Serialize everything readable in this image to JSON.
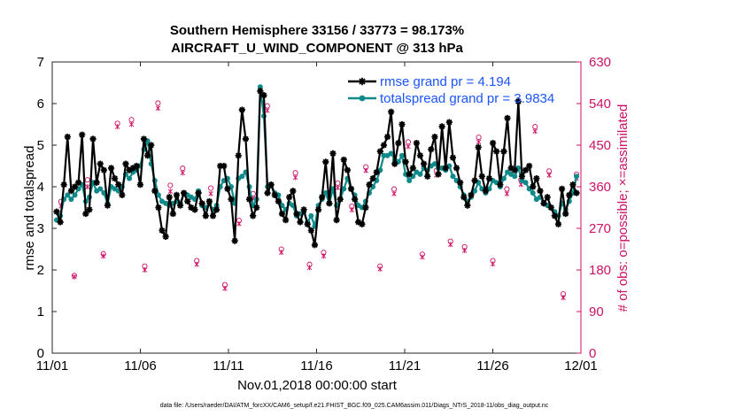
{
  "chart_data": {
    "type": "line",
    "title": "Southern Hemisphere 33156 / 33773 = 98.173%",
    "subtitle": "AIRCRAFT_U_WIND_COMPONENT @ 313 hPa",
    "xlabel": "Nov.01,2018 00:00:00 start",
    "ylabel": "rmse and totalspread",
    "y2label": "# of obs: o=possible; ×=assimilated",
    "footnote": "data file: /Users/raeder/DAI/ATM_forcXX/CAM6_setup/f.e21.FHIST_BGC.f09_025.CAM6assim.011/Diags_NTrS_2018-11/obs_diag_output.nc",
    "xlim": [
      0,
      30
    ],
    "ylim": [
      0,
      7
    ],
    "y2lim": [
      0,
      630
    ],
    "xticks": [
      0,
      5,
      10,
      15,
      20,
      25,
      30
    ],
    "xtick_labels": [
      "11/01",
      "11/06",
      "11/11",
      "11/16",
      "11/21",
      "11/26",
      "12/01"
    ],
    "yticks": [
      0,
      1,
      2,
      3,
      4,
      5,
      6,
      7
    ],
    "y2ticks": [
      0,
      90,
      180,
      270,
      360,
      450,
      540,
      630
    ],
    "colors": {
      "rmse": "#000000",
      "spread": "#0f8a8a",
      "obs": "#cc1166",
      "legend_text": "#1a55ff"
    },
    "series": [
      {
        "name": "rmse grand pr = 4.194",
        "values": [
          3.4,
          3.15,
          4.05,
          5.2,
          3.9,
          4.0,
          4.1,
          5.25,
          3.35,
          3.45,
          5.15,
          4.1,
          4.55,
          4.4,
          3.55,
          4.45,
          4.2,
          4.05,
          3.8,
          4.55,
          4.4,
          4.45,
          4.5,
          4.05,
          5.15,
          4.75,
          5.0,
          3.9,
          3.5,
          2.95,
          2.8,
          3.75,
          3.35,
          3.8,
          3.55,
          3.85,
          3.65,
          3.5,
          3.45,
          3.85,
          3.6,
          3.3,
          3.65,
          3.3,
          3.45,
          4.5,
          4.5,
          3.95,
          3.7,
          2.7,
          4.75,
          5.85,
          5.15,
          3.7,
          3.3,
          3.5,
          6.3,
          6.2,
          3.85,
          4.05,
          3.8,
          3.65,
          3.35,
          3.2,
          3.75,
          3.9,
          3.35,
          3.15,
          3.45,
          3.1,
          2.95,
          2.6,
          3.45,
          3.75,
          4.6,
          3.6,
          4.8,
          3.2,
          3.7,
          4.65,
          4.4,
          3.95,
          3.7,
          3.15,
          3.1,
          3.5,
          4.05,
          4.2,
          4.35,
          4.85,
          5.0,
          5.2,
          5.8,
          4.55,
          5.05,
          5.5,
          4.6,
          4.3,
          4.45,
          5.05,
          4.75,
          4.55,
          4.25,
          4.9,
          5.2,
          4.3,
          5.45,
          4.45,
          5.55,
          4.7,
          4.45,
          4.1,
          3.75,
          3.55,
          3.8,
          4.15,
          4.95,
          4.25,
          3.9,
          4.2,
          5.05,
          4.85,
          4.05,
          4.85,
          5.65,
          4.45,
          4.4,
          6.05,
          4.25,
          4.4,
          4.5,
          4.0,
          4.2,
          3.9,
          3.6,
          3.75,
          3.5,
          3.3,
          3.1,
          3.95,
          3.35,
          3.8,
          4.05,
          3.85
        ],
        "marker": "asterisk"
      },
      {
        "name": "totalspread grand pr = 3.9834",
        "values": [
          3.2,
          3.3,
          3.7,
          3.8,
          3.7,
          3.8,
          3.95,
          4.05,
          3.65,
          3.75,
          4.1,
          3.9,
          3.95,
          3.85,
          3.6,
          4.0,
          3.95,
          3.9,
          4.0,
          4.3,
          4.2,
          4.35,
          4.4,
          4.5,
          4.9,
          5.1,
          4.55,
          4.15,
          3.8,
          3.65,
          3.6,
          3.55,
          3.6,
          3.65,
          3.6,
          3.85,
          3.8,
          3.75,
          3.7,
          3.9,
          3.55,
          3.5,
          3.6,
          3.45,
          3.55,
          4.0,
          4.15,
          4.2,
          4.0,
          3.6,
          4.2,
          4.25,
          4.35,
          4.0,
          3.55,
          3.7,
          6.4,
          5.7,
          4.0,
          4.05,
          3.85,
          3.8,
          3.55,
          3.45,
          3.6,
          3.55,
          3.3,
          3.35,
          3.4,
          3.15,
          3.3,
          3.05,
          3.55,
          3.7,
          3.85,
          3.6,
          3.95,
          3.55,
          3.7,
          3.95,
          4.2,
          3.95,
          3.8,
          3.55,
          3.5,
          3.65,
          3.85,
          4.0,
          4.15,
          4.4,
          4.75,
          4.75,
          4.8,
          4.65,
          4.6,
          4.75,
          4.3,
          4.15,
          4.25,
          4.35,
          4.3,
          4.45,
          4.4,
          4.5,
          4.55,
          4.45,
          4.45,
          4.4,
          4.5,
          4.25,
          4.15,
          4.0,
          3.8,
          3.65,
          3.75,
          3.9,
          4.1,
          3.95,
          3.85,
          3.95,
          4.15,
          4.1,
          4.0,
          4.2,
          4.35,
          4.3,
          4.25,
          4.45,
          4.15,
          4.1,
          3.95,
          3.85,
          3.7,
          3.75,
          3.6,
          3.55,
          3.5,
          3.4,
          3.3,
          3.6,
          3.45,
          3.65,
          3.85,
          4.25
        ],
        "marker": "circle"
      }
    ],
    "obs_x": [
      0.5,
      1.25,
      2.0,
      2.9,
      3.7,
      4.5,
      5.25,
      6.0,
      6.7,
      7.4,
      8.2,
      9.0,
      9.8,
      10.6,
      11.4,
      12.2,
      13.0,
      13.8,
      14.6,
      15.4,
      16.2,
      17.0,
      17.8,
      18.6,
      19.4,
      20.2,
      21.0,
      21.8,
      22.6,
      23.4,
      24.2,
      25.0,
      25.8,
      26.6,
      27.4,
      28.2,
      29.0,
      29.75
    ],
    "obs_possible": [
      328,
      168,
      375,
      215,
      497,
      505,
      188,
      541,
      363,
      400,
      200,
      357,
      148,
      287,
      345,
      535,
      225,
      390,
      192,
      218,
      368,
      318,
      403,
      188,
      355,
      457,
      214,
      395,
      242,
      230,
      467,
      200,
      355,
      375,
      490,
      394,
      128,
      387
    ],
    "obs_assimilated": [
      318,
      165,
      360,
      210,
      490,
      495,
      180,
      530,
      350,
      390,
      192,
      345,
      140,
      280,
      335,
      525,
      218,
      380,
      185,
      210,
      358,
      310,
      395,
      182,
      345,
      447,
      208,
      385,
      235,
      222,
      457,
      193,
      345,
      365,
      480,
      385,
      120,
      378
    ]
  }
}
